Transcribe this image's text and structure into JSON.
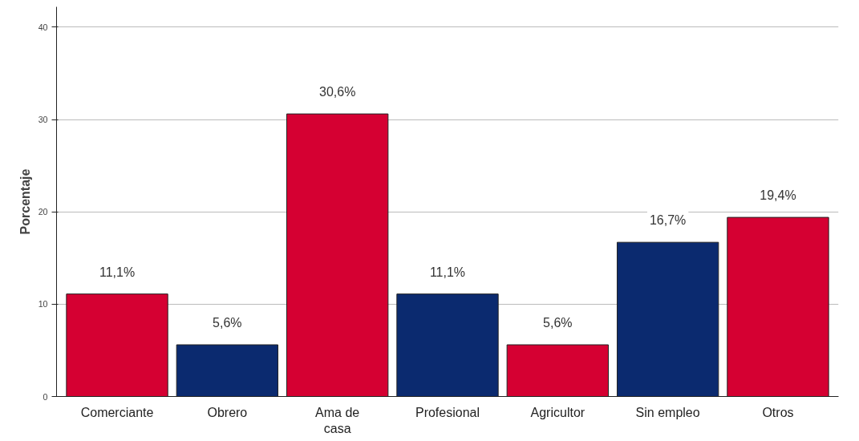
{
  "chart_data": {
    "type": "bar",
    "ylabel": "Porcentaje",
    "categories": [
      "Comerciante",
      "Obrero",
      "Ama de casa",
      "Profesional",
      "Agricultor",
      "Sin empleo",
      "Otros"
    ],
    "values": [
      11.1,
      5.6,
      30.6,
      11.1,
      5.6,
      16.7,
      19.4
    ],
    "colors": [
      "#d50032",
      "#0b2a6f",
      "#d50032",
      "#0b2a6f",
      "#d50032",
      "#0b2a6f",
      "#d50032"
    ],
    "value_labels": [
      "11,1%",
      "5,6%",
      "30,6%",
      "11,1%",
      "5,6%",
      "16,7%",
      "19,4%"
    ],
    "ylim": [
      0,
      42.2
    ],
    "yticks": [
      0,
      10,
      20,
      30,
      40
    ],
    "grid": "y"
  }
}
